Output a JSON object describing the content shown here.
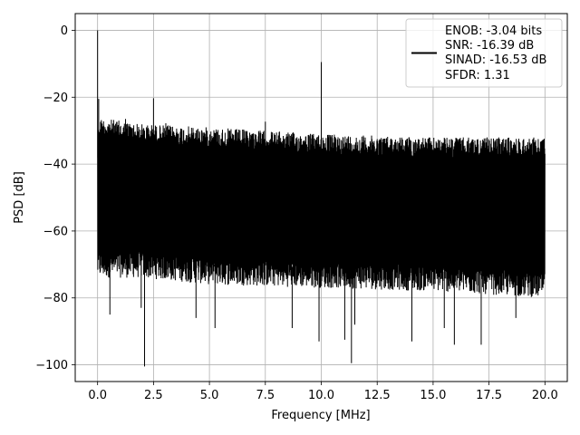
{
  "chart_data": {
    "type": "line",
    "title": "",
    "xlabel": "Frequency [MHz]",
    "ylabel": "PSD [dB]",
    "xlim": [
      -1.0,
      21.0
    ],
    "ylim": [
      -105,
      5
    ],
    "xticks": [
      0.0,
      2.5,
      5.0,
      7.5,
      10.0,
      12.5,
      15.0,
      17.5,
      20.0
    ],
    "xtick_labels": [
      "0.0",
      "2.5",
      "5.0",
      "7.5",
      "10.0",
      "12.5",
      "15.0",
      "17.5",
      "20.0"
    ],
    "yticks": [
      0,
      -20,
      -40,
      -60,
      -80,
      -100
    ],
    "ytick_labels": [
      "0",
      "−20",
      "−40",
      "−60",
      "−80",
      "−100"
    ],
    "grid": true,
    "legend_placement": "top-right",
    "line_color": "#000000",
    "series": [
      {
        "name": "ENOB: -3.04 bits\nSNR: -16.39 dB\nSINAD: -16.53 dB\nSFDR: 1.31",
        "x_range": [
          0.0,
          20.0
        ],
        "noise_band_upper": [
          [
            0.0,
            -28
          ],
          [
            2.0,
            -30
          ],
          [
            5.0,
            -31
          ],
          [
            10.0,
            -33
          ],
          [
            15.0,
            -34
          ],
          [
            20.0,
            -34
          ]
        ],
        "noise_band_lower": [
          [
            0.0,
            -72
          ],
          [
            2.0,
            -72
          ],
          [
            5.0,
            -74
          ],
          [
            10.0,
            -75
          ],
          [
            15.0,
            -76
          ],
          [
            20.0,
            -78
          ]
        ],
        "spurs": [
          {
            "x": 0.0,
            "y": 0.0
          },
          {
            "x": 0.05,
            "y": -20.5
          },
          {
            "x": 1.25,
            "y": -26.5
          },
          {
            "x": 2.5,
            "y": -20.3
          },
          {
            "x": 3.05,
            "y": -27.8
          },
          {
            "x": 7.5,
            "y": -27.3
          },
          {
            "x": 10.0,
            "y": -9.5
          }
        ],
        "deep_notches": [
          {
            "x": 2.1,
            "y": -100.5
          },
          {
            "x": 11.35,
            "y": -99.5
          },
          {
            "x": 0.55,
            "y": -85
          },
          {
            "x": 1.95,
            "y": -83
          },
          {
            "x": 4.4,
            "y": -86
          },
          {
            "x": 5.25,
            "y": -89
          },
          {
            "x": 8.7,
            "y": -89
          },
          {
            "x": 9.9,
            "y": -93
          },
          {
            "x": 11.05,
            "y": -92.5
          },
          {
            "x": 11.5,
            "y": -88
          },
          {
            "x": 14.05,
            "y": -93
          },
          {
            "x": 15.5,
            "y": -89
          },
          {
            "x": 15.95,
            "y": -94
          },
          {
            "x": 17.15,
            "y": -94
          },
          {
            "x": 18.7,
            "y": -86
          }
        ]
      }
    ],
    "legend_lines": [
      "ENOB: -3.04 bits",
      "SNR: -16.39 dB",
      "SINAD: -16.53 dB",
      "SFDR: 1.31"
    ]
  }
}
